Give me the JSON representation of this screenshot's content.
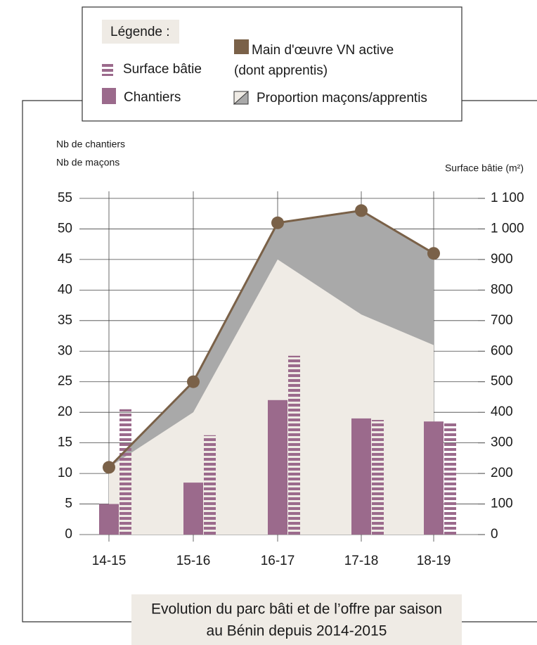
{
  "chart_data": {
    "type": "combo",
    "title_lines": [
      "Evolution du parc bâti et de l’offre par saison",
      "au Bénin depuis 2014-2015"
    ],
    "legend_title": "Légende :",
    "y_label_lines": [
      "Nb de chantiers",
      "Nb de maçons"
    ],
    "y2_label": "Surface bâtie (m²)",
    "categories": [
      "14-15",
      "15-16",
      "16-17",
      "17-18",
      "18-19"
    ],
    "ylim": [
      0,
      55
    ],
    "yticks": [
      0,
      5,
      10,
      15,
      20,
      25,
      30,
      35,
      40,
      45,
      50,
      55
    ],
    "y2lim": [
      0,
      1100
    ],
    "y2ticks": [
      0,
      100,
      200,
      300,
      400,
      500,
      600,
      700,
      800,
      900,
      {
        "value": 1000,
        "label": "1 000"
      },
      {
        "value": 1100,
        "label": "1 100"
      }
    ],
    "grid": true,
    "series": [
      {
        "name": "Surface bâtie",
        "kind": "striped-bar",
        "axis": "y2",
        "color": "#9b6a8c",
        "values": [
          410,
          325,
          585,
          375,
          370
        ]
      },
      {
        "name": "Chantiers",
        "kind": "bar",
        "color": "#9b6a8c",
        "values": [
          5,
          8.5,
          22,
          19,
          18.5
        ]
      },
      {
        "name": "Main d'œuvre VN active",
        "name_note": "(dont apprentis)",
        "kind": "line",
        "color": "#7a6148",
        "area_color": "#a9a9a9",
        "values": [
          11,
          25,
          51,
          53,
          46
        ]
      },
      {
        "name": "Proportion maçons/apprentis",
        "kind": "area",
        "color": "#efebe5",
        "values": [
          11,
          20,
          45,
          36,
          31
        ]
      }
    ]
  }
}
